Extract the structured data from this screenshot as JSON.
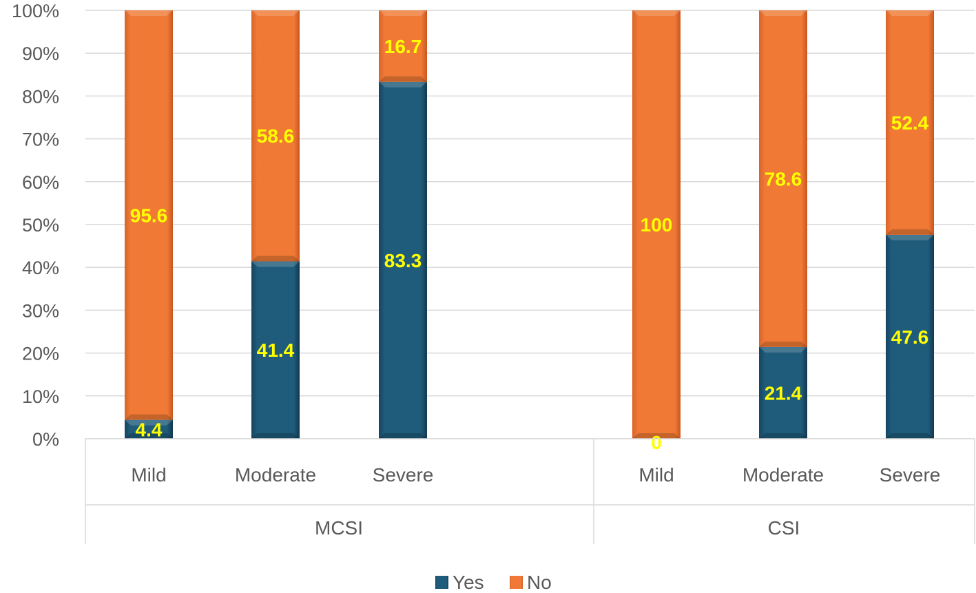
{
  "chart_data": {
    "type": "bar",
    "stacked": true,
    "ylim": [
      0,
      100
    ],
    "ytick_step": 10,
    "ytick_suffix": "%",
    "grid": true,
    "legend_position": "bottom",
    "groups": [
      {
        "name": "MCSI",
        "categories": [
          "Mild",
          "Moderate",
          "Severe"
        ]
      },
      {
        "name": "CSI",
        "categories": [
          "Mild",
          "Moderate",
          "Severe"
        ]
      }
    ],
    "series": [
      {
        "name": "Yes",
        "color": "#1f5b7a",
        "values": [
          4.4,
          41.4,
          83.3,
          0,
          21.4,
          47.6
        ],
        "labels": [
          "4.4",
          "41.4",
          "83.3",
          "0",
          "21.4",
          "47.6"
        ]
      },
      {
        "name": "No",
        "color": "#f07a35",
        "values": [
          95.6,
          58.6,
          16.7,
          100,
          78.6,
          52.4
        ],
        "labels": [
          "95.6",
          "58.6",
          "16.7",
          "100",
          "78.6",
          "52.4"
        ]
      }
    ],
    "label_color": "#ffff00"
  }
}
